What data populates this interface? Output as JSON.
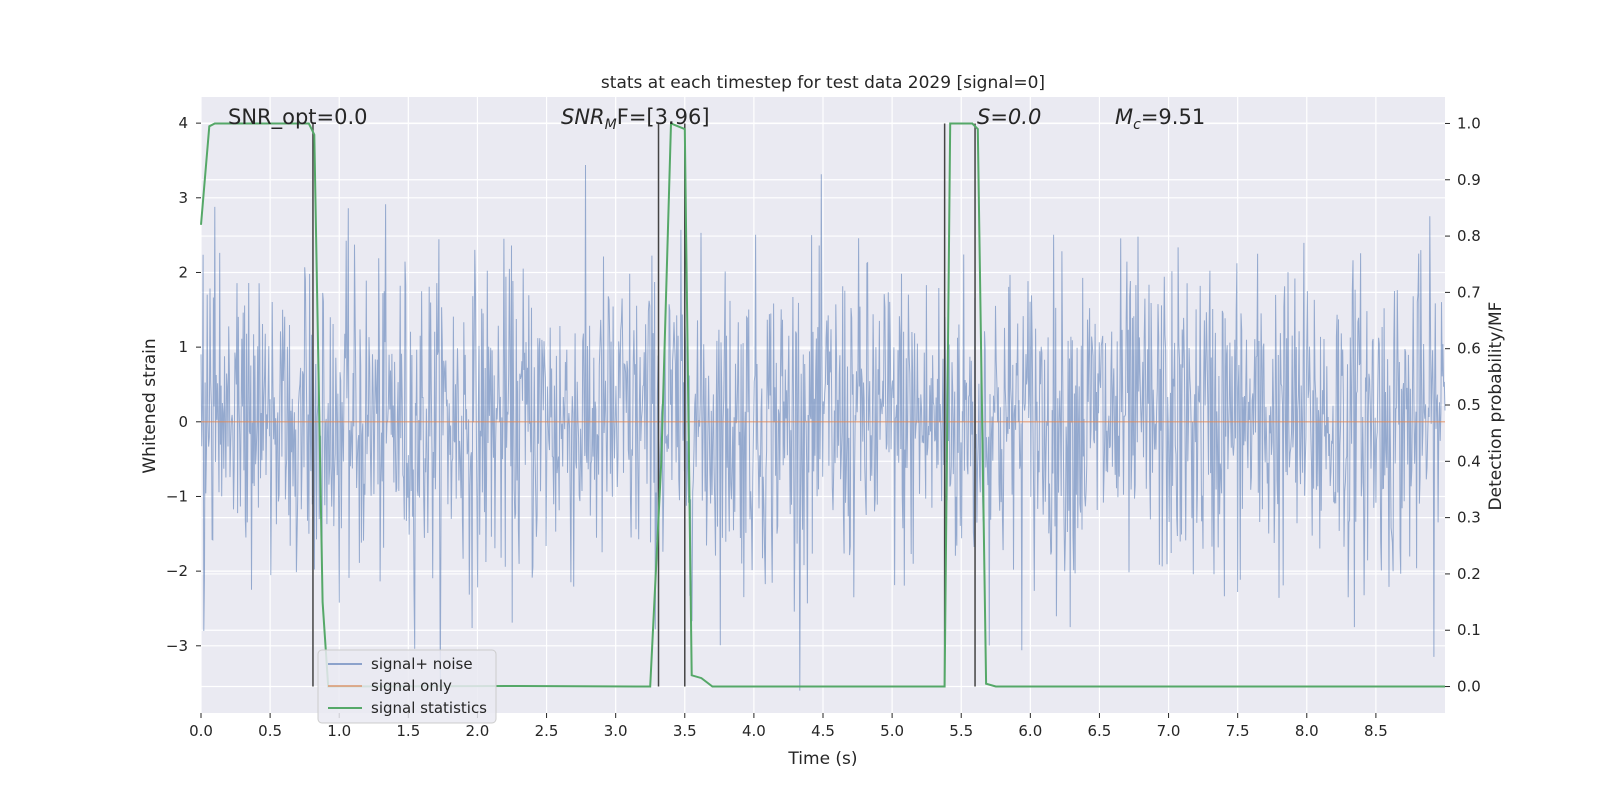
{
  "chart_data": {
    "type": "line",
    "title": "stats at each timestep for test data 2029 [signal=0]",
    "xlabel": "Time (s)",
    "ylabel": "Whitened strain",
    "y2label": "Detection probability/MF",
    "xlim": [
      0,
      9
    ],
    "ylim": [
      -3.9,
      4.35
    ],
    "y2lim": [
      -0.047,
      1.047
    ],
    "xticks": [
      "0.0",
      "0.5",
      "1.0",
      "1.5",
      "2.0",
      "2.5",
      "3.0",
      "3.5",
      "4.0",
      "4.5",
      "5.0",
      "5.5",
      "6.0",
      "6.5",
      "7.0",
      "7.5",
      "8.0",
      "8.5"
    ],
    "yticks": [
      "4",
      "3",
      "2",
      "1",
      "0",
      "−1",
      "−2",
      "−3"
    ],
    "y2ticks": [
      "1.0",
      "0.9",
      "0.8",
      "0.7",
      "0.6",
      "0.5",
      "0.4",
      "0.3",
      "0.2",
      "0.1",
      "0.0"
    ],
    "annotations": {
      "snr_opt": "SNR_opt=0.0",
      "snr_mf_base": "SNR",
      "snr_mf_sub": "M",
      "snr_mf_rest": "F=[3.96]",
      "s_stat": "S=0.0",
      "mc_base": "M",
      "mc_sub": "c",
      "mc_rest": "=9.51"
    },
    "legend": {
      "placement": "lower-left",
      "entries": [
        {
          "label": "signal+ noise",
          "color": "#4c72b0"
        },
        {
          "label": "signal only",
          "color": "#dd8452"
        },
        {
          "label": "signal statistics",
          "color": "#55a868"
        }
      ]
    },
    "grid": true,
    "series": [
      {
        "name": "signal+ noise",
        "axis": "left",
        "color": "#4c72b0",
        "description_kind": "noise",
        "amplitude_range": [
          -3.6,
          3.75
        ]
      },
      {
        "name": "signal only",
        "axis": "left",
        "color": "#dd8452",
        "x": [
          0,
          9
        ],
        "y": [
          0,
          0
        ]
      },
      {
        "name": "signal statistics",
        "axis": "right",
        "color": "#55a868",
        "x": [
          0.0,
          0.06,
          0.1,
          0.78,
          0.8,
          0.82,
          0.88,
          0.92,
          2.3,
          3.25,
          3.33,
          3.4,
          3.5,
          3.55,
          3.62,
          3.7,
          5.38,
          5.42,
          5.58,
          5.62,
          5.68,
          5.75,
          9.0
        ],
        "y": [
          0.82,
          0.995,
          1.0,
          1.0,
          0.99,
          0.98,
          0.15,
          0.0,
          0.001,
          0.0,
          0.4,
          1.0,
          0.99,
          0.02,
          0.015,
          0.0,
          0.0,
          1.0,
          1.0,
          0.99,
          0.005,
          0.0,
          0.0
        ]
      }
    ],
    "vertical_lines": {
      "color": "#444444",
      "x": [
        0.81,
        3.31,
        3.5,
        5.38,
        5.6
      ],
      "y2_range": [
        0.0,
        1.0
      ]
    }
  }
}
